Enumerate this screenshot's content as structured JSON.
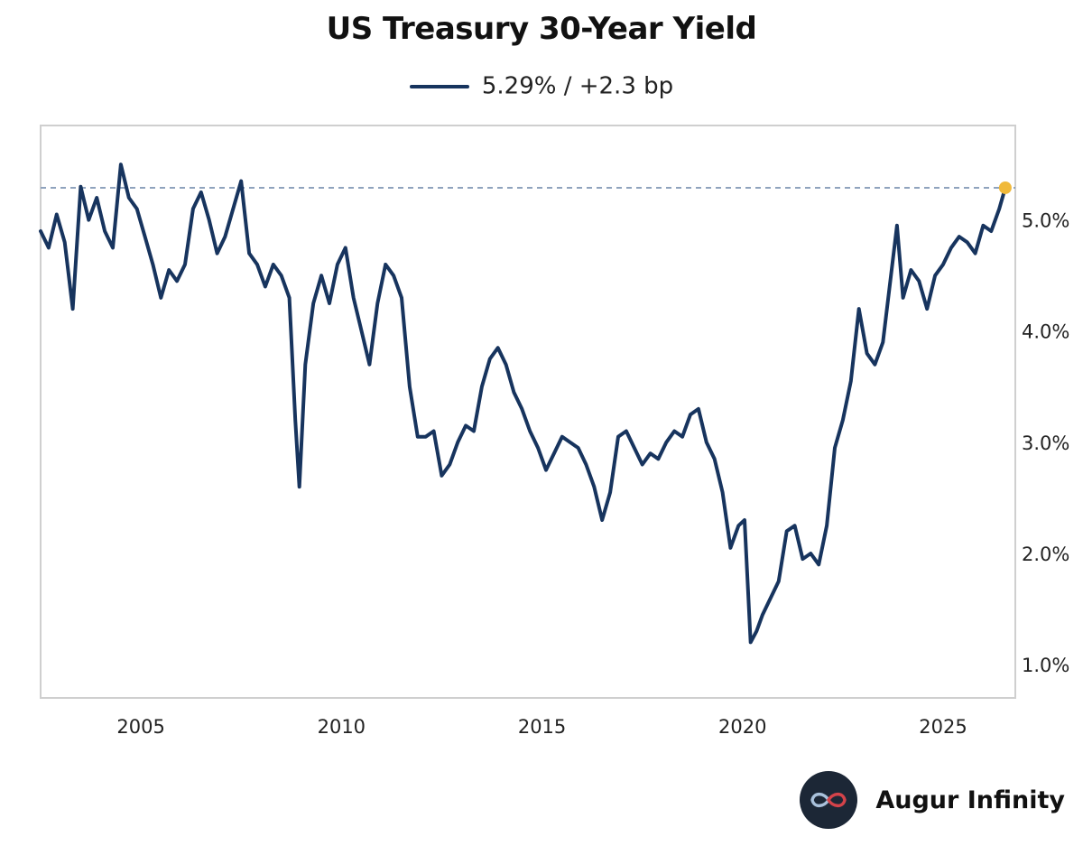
{
  "header": {
    "legend_label": "5.29% / +2.3 bp"
  },
  "brand": {
    "name": "Augur Infinity",
    "icon": "infinity-logo-icon"
  },
  "chart_data": {
    "type": "line",
    "title": "US Treasury 30-Year Yield",
    "xlabel": "",
    "ylabel": "",
    "x_ticks": [
      "2005",
      "2010",
      "2015",
      "2020",
      "2025"
    ],
    "y_ticks": [
      "1.0%",
      "2.0%",
      "3.0%",
      "4.0%",
      "5.0%"
    ],
    "y_tick_values": [
      1.0,
      2.0,
      3.0,
      4.0,
      5.0
    ],
    "xlim": [
      2002.5,
      2026.8
    ],
    "ylim": [
      0.7,
      5.85
    ],
    "grid": false,
    "legend_placement": "top-center",
    "reference_line": {
      "value": 5.29,
      "style": "dashed"
    },
    "last_point": {
      "x": 2026.55,
      "y": 5.29,
      "color": "#f0b93a"
    },
    "series": [
      {
        "name": "5.29% / +2.3 bp",
        "color": "#17345e",
        "x": [
          2002.5,
          2002.7,
          2002.9,
          2003.1,
          2003.3,
          2003.5,
          2003.7,
          2003.9,
          2004.1,
          2004.3,
          2004.5,
          2004.7,
          2004.9,
          2005.1,
          2005.3,
          2005.5,
          2005.7,
          2005.9,
          2006.1,
          2006.3,
          2006.5,
          2006.7,
          2006.9,
          2007.1,
          2007.3,
          2007.5,
          2007.7,
          2007.9,
          2008.1,
          2008.3,
          2008.5,
          2008.7,
          2008.85,
          2008.95,
          2009.1,
          2009.3,
          2009.5,
          2009.7,
          2009.9,
          2010.1,
          2010.3,
          2010.5,
          2010.7,
          2010.9,
          2011.1,
          2011.3,
          2011.5,
          2011.7,
          2011.9,
          2012.1,
          2012.3,
          2012.5,
          2012.7,
          2012.9,
          2013.1,
          2013.3,
          2013.5,
          2013.7,
          2013.9,
          2014.1,
          2014.3,
          2014.5,
          2014.7,
          2014.9,
          2015.1,
          2015.3,
          2015.5,
          2015.7,
          2015.9,
          2016.1,
          2016.3,
          2016.5,
          2016.7,
          2016.9,
          2017.1,
          2017.3,
          2017.5,
          2017.7,
          2017.9,
          2018.1,
          2018.3,
          2018.5,
          2018.7,
          2018.9,
          2019.1,
          2019.3,
          2019.5,
          2019.7,
          2019.9,
          2020.05,
          2020.2,
          2020.35,
          2020.5,
          2020.7,
          2020.9,
          2021.1,
          2021.3,
          2021.5,
          2021.7,
          2021.9,
          2022.1,
          2022.3,
          2022.5,
          2022.7,
          2022.9,
          2023.1,
          2023.3,
          2023.5,
          2023.7,
          2023.85,
          2024.0,
          2024.2,
          2024.4,
          2024.6,
          2024.8,
          2025.0,
          2025.2,
          2025.4,
          2025.6,
          2025.8,
          2026.0,
          2026.2,
          2026.4,
          2026.55
        ],
        "values": [
          4.9,
          4.75,
          5.05,
          4.8,
          4.2,
          5.3,
          5.0,
          5.2,
          4.9,
          4.75,
          5.5,
          5.2,
          5.1,
          4.85,
          4.6,
          4.3,
          4.55,
          4.45,
          4.6,
          5.1,
          5.25,
          5.0,
          4.7,
          4.85,
          5.1,
          5.35,
          4.7,
          4.6,
          4.4,
          4.6,
          4.5,
          4.3,
          3.2,
          2.6,
          3.7,
          4.25,
          4.5,
          4.25,
          4.6,
          4.75,
          4.3,
          4.0,
          3.7,
          4.25,
          4.6,
          4.5,
          4.3,
          3.5,
          3.05,
          3.05,
          3.1,
          2.7,
          2.8,
          3.0,
          3.15,
          3.1,
          3.5,
          3.75,
          3.85,
          3.7,
          3.45,
          3.3,
          3.1,
          2.95,
          2.75,
          2.9,
          3.05,
          3.0,
          2.95,
          2.8,
          2.6,
          2.3,
          2.55,
          3.05,
          3.1,
          2.95,
          2.8,
          2.9,
          2.85,
          3.0,
          3.1,
          3.05,
          3.25,
          3.3,
          3.0,
          2.85,
          2.55,
          2.05,
          2.25,
          2.3,
          1.2,
          1.3,
          1.45,
          1.6,
          1.75,
          2.2,
          2.25,
          1.95,
          2.0,
          1.9,
          2.25,
          2.95,
          3.2,
          3.55,
          4.2,
          3.8,
          3.7,
          3.9,
          4.5,
          4.95,
          4.3,
          4.55,
          4.45,
          4.2,
          4.5,
          4.6,
          4.75,
          4.85,
          4.8,
          4.7,
          4.95,
          4.9,
          5.1,
          5.29
        ]
      }
    ]
  }
}
